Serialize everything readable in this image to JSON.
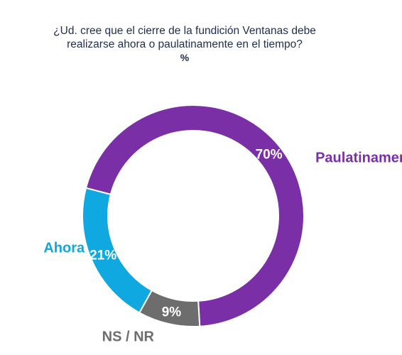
{
  "chart_data": {
    "type": "pie",
    "donut": true,
    "title_lines": [
      "¿Ud. cree que el cierre de la fundición Ventanas debe",
      "realizarse ahora o paulatinamente en el tiempo?"
    ],
    "unit": "%",
    "slices": [
      {
        "label": "Ahora",
        "value": 21,
        "value_label": "21%",
        "color": "#0fa8e0"
      },
      {
        "label": "Paulatinamente",
        "value": 70,
        "value_label": "70%",
        "color": "#7a2fa6"
      },
      {
        "label": "NS / NR",
        "value": 9,
        "value_label": "9%",
        "color": "#6d6d6d"
      }
    ]
  }
}
